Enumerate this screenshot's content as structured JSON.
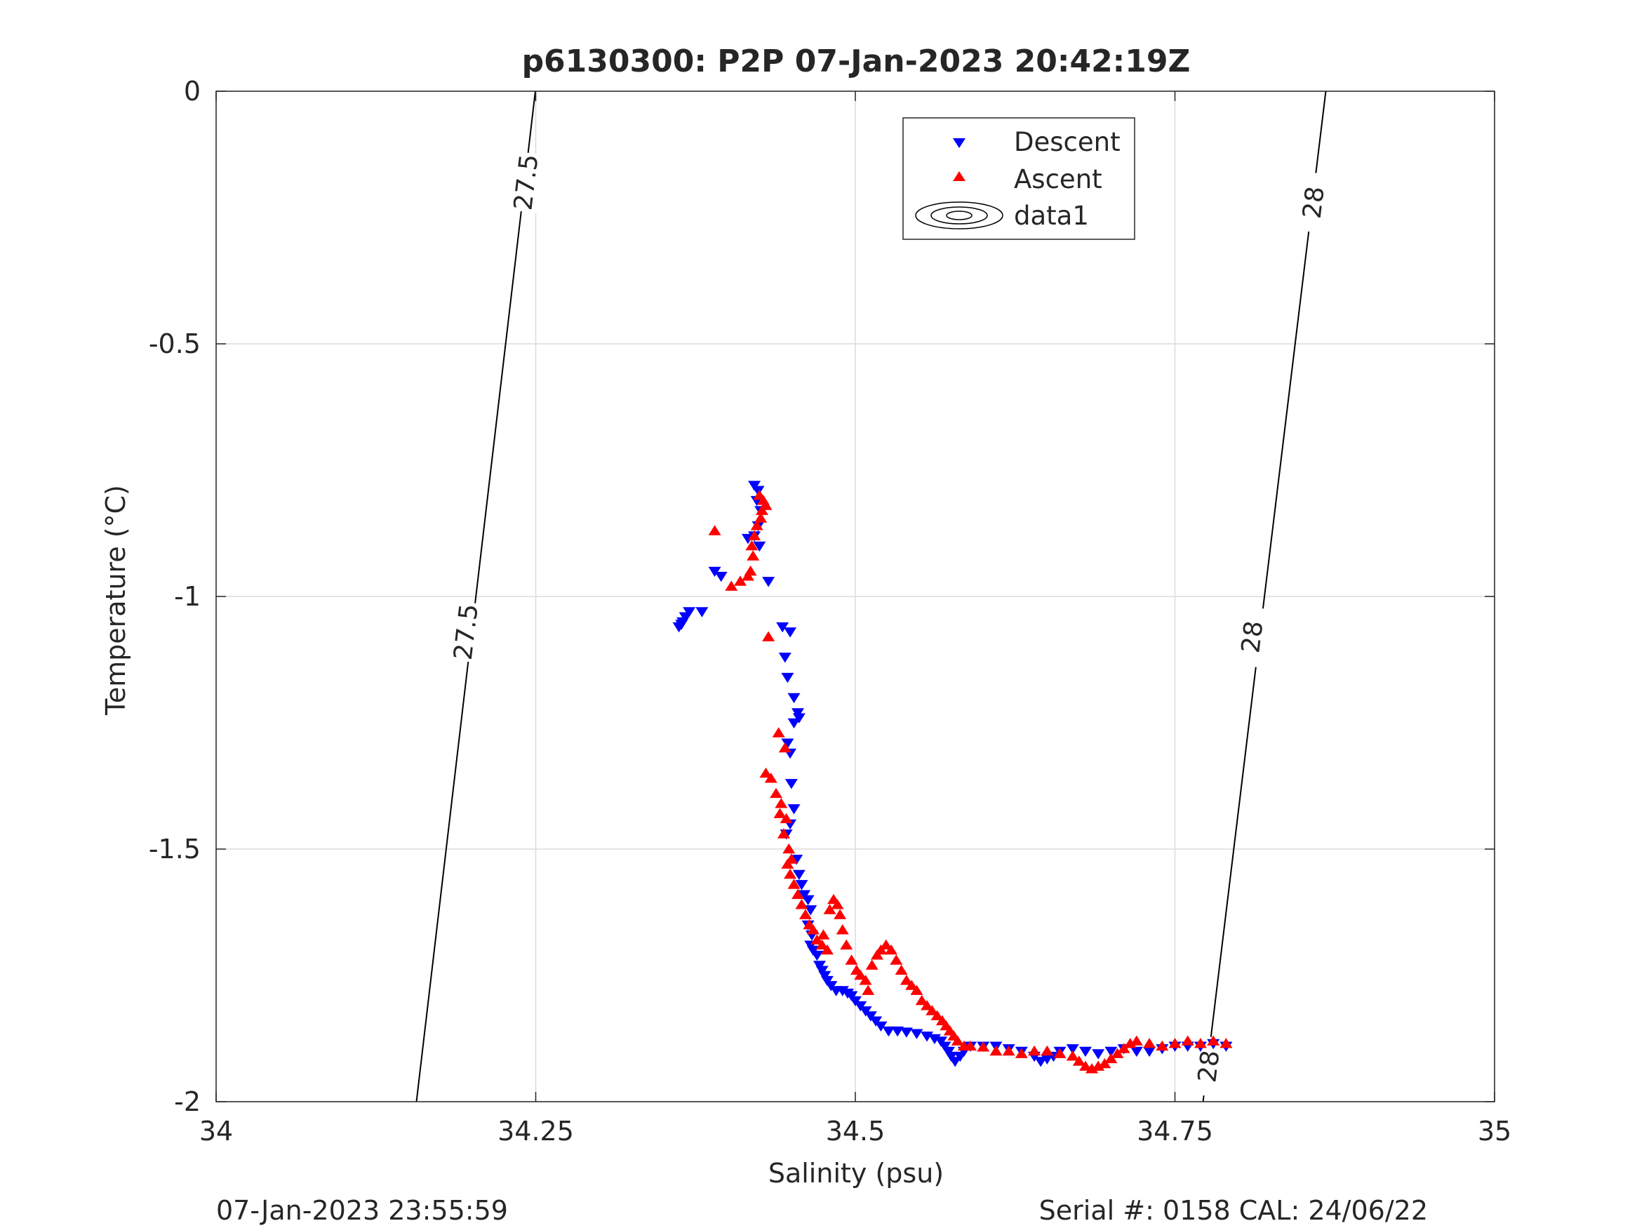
{
  "chart_data": {
    "type": "scatter",
    "title": "p6130300: P2P 07-Jan-2023 20:42:19Z",
    "xlabel": "Salinity (psu)",
    "ylabel": "Temperature (°C)",
    "xlim": [
      34,
      35
    ],
    "ylim": [
      -2,
      0
    ],
    "xticks": [
      {
        "value": 34,
        "label": "34"
      },
      {
        "value": 34.25,
        "label": "34.25"
      },
      {
        "value": 34.5,
        "label": "34.5"
      },
      {
        "value": 34.75,
        "label": "34.75"
      },
      {
        "value": 35,
        "label": "35"
      }
    ],
    "yticks": [
      {
        "value": 0,
        "label": "0"
      },
      {
        "value": -0.5,
        "label": "-0.5"
      },
      {
        "value": -1,
        "label": "-1"
      },
      {
        "value": -1.5,
        "label": "-1.5"
      },
      {
        "value": -2,
        "label": "-2"
      }
    ],
    "grid": true,
    "legend_position": "top-center",
    "legend": [
      "Descent",
      "Ascent",
      "data1"
    ],
    "series": [
      {
        "name": "Descent",
        "marker": "triangle-down",
        "color": "#0000ff",
        "points": [
          [
            34.421,
            -0.78
          ],
          [
            34.424,
            -0.79
          ],
          [
            34.423,
            -0.81
          ],
          [
            34.426,
            -0.83
          ],
          [
            34.424,
            -0.86
          ],
          [
            34.421,
            -0.88
          ],
          [
            34.416,
            -0.885
          ],
          [
            34.425,
            -0.9
          ],
          [
            34.432,
            -0.97
          ],
          [
            34.39,
            -0.95
          ],
          [
            34.395,
            -0.96
          ],
          [
            34.38,
            -1.03
          ],
          [
            34.37,
            -1.03
          ],
          [
            34.367,
            -1.04
          ],
          [
            34.365,
            -1.05
          ],
          [
            34.362,
            -1.06
          ],
          [
            34.364,
            -1.055
          ],
          [
            34.443,
            -1.06
          ],
          [
            34.449,
            -1.07
          ],
          [
            34.445,
            -1.12
          ],
          [
            34.447,
            -1.16
          ],
          [
            34.452,
            -1.2
          ],
          [
            34.455,
            -1.23
          ],
          [
            34.456,
            -1.24
          ],
          [
            34.452,
            -1.25
          ],
          [
            34.447,
            -1.29
          ],
          [
            34.449,
            -1.31
          ],
          [
            34.45,
            -1.37
          ],
          [
            34.452,
            -1.42
          ],
          [
            34.449,
            -1.45
          ],
          [
            34.446,
            -1.47
          ],
          [
            34.454,
            -1.52
          ],
          [
            34.456,
            -1.55
          ],
          [
            34.458,
            -1.57
          ],
          [
            34.46,
            -1.59
          ],
          [
            34.463,
            -1.6
          ],
          [
            34.465,
            -1.62
          ],
          [
            34.463,
            -1.65
          ],
          [
            34.466,
            -1.67
          ],
          [
            34.465,
            -1.69
          ],
          [
            34.467,
            -1.7
          ],
          [
            34.47,
            -1.71
          ],
          [
            34.472,
            -1.73
          ],
          [
            34.474,
            -1.74
          ],
          [
            34.476,
            -1.75
          ],
          [
            34.478,
            -1.76
          ],
          [
            34.481,
            -1.77
          ],
          [
            34.485,
            -1.78
          ],
          [
            34.49,
            -1.78
          ],
          [
            34.494,
            -1.785
          ],
          [
            34.497,
            -1.79
          ],
          [
            34.5,
            -1.8
          ],
          [
            34.504,
            -1.81
          ],
          [
            34.508,
            -1.82
          ],
          [
            34.512,
            -1.83
          ],
          [
            34.516,
            -1.84
          ],
          [
            34.52,
            -1.85
          ],
          [
            34.526,
            -1.86
          ],
          [
            34.533,
            -1.86
          ],
          [
            34.54,
            -1.862
          ],
          [
            34.548,
            -1.865
          ],
          [
            34.556,
            -1.87
          ],
          [
            34.562,
            -1.875
          ],
          [
            34.567,
            -1.88
          ],
          [
            34.57,
            -1.89
          ],
          [
            34.573,
            -1.9
          ],
          [
            34.575,
            -1.91
          ],
          [
            34.578,
            -1.92
          ],
          [
            34.582,
            -1.91
          ],
          [
            34.585,
            -1.9
          ],
          [
            34.59,
            -1.89
          ],
          [
            34.6,
            -1.89
          ],
          [
            34.61,
            -1.89
          ],
          [
            34.62,
            -1.895
          ],
          [
            34.63,
            -1.9
          ],
          [
            34.64,
            -1.91
          ],
          [
            34.645,
            -1.92
          ],
          [
            34.65,
            -1.915
          ],
          [
            34.655,
            -1.91
          ],
          [
            34.66,
            -1.9
          ],
          [
            34.67,
            -1.895
          ],
          [
            34.68,
            -1.9
          ],
          [
            34.69,
            -1.905
          ],
          [
            34.7,
            -1.9
          ],
          [
            34.71,
            -1.895
          ],
          [
            34.72,
            -1.9
          ],
          [
            34.73,
            -1.9
          ],
          [
            34.74,
            -1.895
          ],
          [
            34.75,
            -1.89
          ],
          [
            34.76,
            -1.89
          ],
          [
            34.77,
            -1.89
          ],
          [
            34.78,
            -1.885
          ],
          [
            34.79,
            -1.89
          ]
        ]
      },
      {
        "name": "Ascent",
        "marker": "triangle-up",
        "color": "#ff0000",
        "points": [
          [
            34.425,
            -0.8
          ],
          [
            34.428,
            -0.81
          ],
          [
            34.43,
            -0.82
          ],
          [
            34.427,
            -0.83
          ],
          [
            34.426,
            -0.845
          ],
          [
            34.423,
            -0.86
          ],
          [
            34.421,
            -0.88
          ],
          [
            34.419,
            -0.9
          ],
          [
            34.42,
            -0.92
          ],
          [
            34.418,
            -0.95
          ],
          [
            34.416,
            -0.96
          ],
          [
            34.41,
            -0.97
          ],
          [
            34.403,
            -0.98
          ],
          [
            34.39,
            -0.87
          ],
          [
            34.432,
            -1.08
          ],
          [
            34.44,
            -1.27
          ],
          [
            34.445,
            -1.3
          ],
          [
            34.43,
            -1.35
          ],
          [
            34.434,
            -1.36
          ],
          [
            34.438,
            -1.39
          ],
          [
            34.442,
            -1.41
          ],
          [
            34.441,
            -1.43
          ],
          [
            34.446,
            -1.44
          ],
          [
            34.444,
            -1.47
          ],
          [
            34.448,
            -1.5
          ],
          [
            34.45,
            -1.52
          ],
          [
            34.447,
            -1.53
          ],
          [
            34.449,
            -1.55
          ],
          [
            34.452,
            -1.57
          ],
          [
            34.455,
            -1.59
          ],
          [
            34.458,
            -1.61
          ],
          [
            34.461,
            -1.63
          ],
          [
            34.464,
            -1.65
          ],
          [
            34.467,
            -1.66
          ],
          [
            34.47,
            -1.68
          ],
          [
            34.474,
            -1.69
          ],
          [
            34.478,
            -1.7
          ],
          [
            34.475,
            -1.67
          ],
          [
            34.48,
            -1.62
          ],
          [
            34.483,
            -1.6
          ],
          [
            34.486,
            -1.61
          ],
          [
            34.488,
            -1.63
          ],
          [
            34.49,
            -1.66
          ],
          [
            34.493,
            -1.69
          ],
          [
            34.497,
            -1.72
          ],
          [
            34.501,
            -1.74
          ],
          [
            34.504,
            -1.75
          ],
          [
            34.508,
            -1.76
          ],
          [
            34.51,
            -1.78
          ],
          [
            34.513,
            -1.73
          ],
          [
            34.517,
            -1.71
          ],
          [
            34.52,
            -1.7
          ],
          [
            34.524,
            -1.69
          ],
          [
            34.528,
            -1.7
          ],
          [
            34.532,
            -1.72
          ],
          [
            34.536,
            -1.74
          ],
          [
            34.54,
            -1.76
          ],
          [
            34.544,
            -1.77
          ],
          [
            34.548,
            -1.78
          ],
          [
            34.552,
            -1.8
          ],
          [
            34.556,
            -1.81
          ],
          [
            34.56,
            -1.82
          ],
          [
            34.564,
            -1.83
          ],
          [
            34.568,
            -1.84
          ],
          [
            34.571,
            -1.85
          ],
          [
            34.574,
            -1.86
          ],
          [
            34.577,
            -1.87
          ],
          [
            34.58,
            -1.88
          ],
          [
            34.585,
            -1.89
          ],
          [
            34.59,
            -1.89
          ],
          [
            34.6,
            -1.892
          ],
          [
            34.61,
            -1.9
          ],
          [
            34.62,
            -1.9
          ],
          [
            34.63,
            -1.905
          ],
          [
            34.64,
            -1.9
          ],
          [
            34.65,
            -1.9
          ],
          [
            34.66,
            -1.905
          ],
          [
            34.67,
            -1.91
          ],
          [
            34.675,
            -1.92
          ],
          [
            34.68,
            -1.93
          ],
          [
            34.685,
            -1.935
          ],
          [
            34.69,
            -1.93
          ],
          [
            34.695,
            -1.925
          ],
          [
            34.7,
            -1.915
          ],
          [
            34.705,
            -1.905
          ],
          [
            34.71,
            -1.895
          ],
          [
            34.715,
            -1.885
          ],
          [
            34.72,
            -1.88
          ],
          [
            34.73,
            -1.885
          ],
          [
            34.74,
            -1.89
          ],
          [
            34.75,
            -1.885
          ],
          [
            34.76,
            -1.88
          ],
          [
            34.77,
            -1.885
          ],
          [
            34.78,
            -1.88
          ],
          [
            34.79,
            -1.885
          ]
        ]
      }
    ],
    "contours": [
      {
        "label": "27.5",
        "points": [
          [
            34.2497,
            0
          ],
          [
            34.1567,
            -2
          ]
        ],
        "label_positions": [
          [
            34.242,
            -0.18
          ],
          [
            34.195,
            -1.07
          ]
        ]
      },
      {
        "label": "28",
        "points": [
          [
            34.868,
            0
          ],
          [
            34.772,
            -2
          ]
        ],
        "label_positions": [
          [
            34.858,
            -0.22
          ],
          [
            34.81,
            -1.08
          ],
          [
            34.776,
            -1.93
          ]
        ]
      }
    ],
    "footer_left": "07-Jan-2023 23:55:59",
    "footer_right": "Serial #: 0158  CAL: 24/06/22"
  }
}
